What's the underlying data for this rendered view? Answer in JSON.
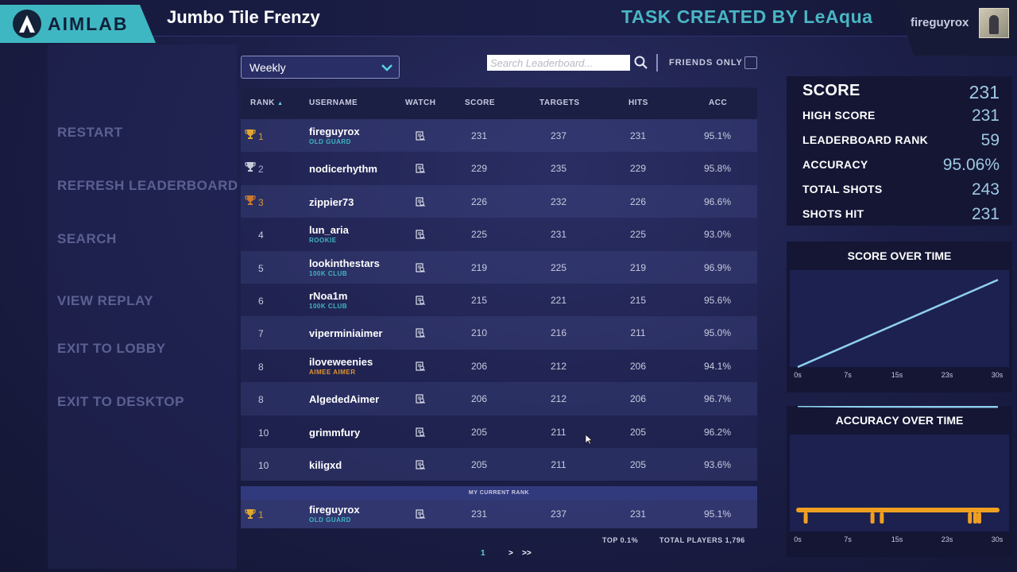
{
  "header": {
    "logo_text": "AIMLAB",
    "game_title": "Jumbo Tile Frenzy",
    "task_credit": "TASK CREATED BY LeAqua",
    "username": "fireguyrox"
  },
  "menu": {
    "items": [
      "RESTART",
      "REFRESH LEADERBOARD",
      "SEARCH",
      "VIEW REPLAY",
      "EXIT TO LOBBY",
      "EXIT TO DESKTOP"
    ]
  },
  "controls": {
    "period": "Weekly",
    "search_placeholder": "Search Leaderboard...",
    "friends_only_label": "FRIENDS ONLY"
  },
  "table": {
    "columns": [
      "RANK",
      "USERNAME",
      "WATCH",
      "SCORE",
      "TARGETS",
      "HITS",
      "ACC"
    ],
    "rows": [
      {
        "rank": "1",
        "trophy": "gold",
        "username": "fireguyrox",
        "badge": "OLD GUARD",
        "badge_color": "#3fb7c2",
        "score": "231",
        "targets": "237",
        "hits": "231",
        "acc": "95.1%"
      },
      {
        "rank": "2",
        "trophy": "silver",
        "username": "nodicerhythm",
        "badge": "",
        "badge_color": "",
        "score": "229",
        "targets": "235",
        "hits": "229",
        "acc": "95.8%"
      },
      {
        "rank": "3",
        "trophy": "bronze",
        "username": "zippier73",
        "badge": "",
        "badge_color": "",
        "score": "226",
        "targets": "232",
        "hits": "226",
        "acc": "96.6%"
      },
      {
        "rank": "4",
        "trophy": "",
        "username": "lun_aria",
        "badge": "ROOKIE",
        "badge_color": "#3fb7c2",
        "score": "225",
        "targets": "231",
        "hits": "225",
        "acc": "93.0%"
      },
      {
        "rank": "5",
        "trophy": "",
        "username": "lookinthestars",
        "badge": "100K CLUB",
        "badge_color": "#3fb7c2",
        "score": "219",
        "targets": "225",
        "hits": "219",
        "acc": "96.9%"
      },
      {
        "rank": "6",
        "trophy": "",
        "username": "rNoa1m",
        "badge": "100K CLUB",
        "badge_color": "#3fb7c2",
        "score": "215",
        "targets": "221",
        "hits": "215",
        "acc": "95.6%"
      },
      {
        "rank": "7",
        "trophy": "",
        "username": "viperminiaimer",
        "badge": "",
        "badge_color": "",
        "score": "210",
        "targets": "216",
        "hits": "211",
        "acc": "95.0%"
      },
      {
        "rank": "8",
        "trophy": "",
        "username": "iloveweenies",
        "badge": "AIMEE AIMER",
        "badge_color": "#e0962e",
        "score": "206",
        "targets": "212",
        "hits": "206",
        "acc": "94.1%"
      },
      {
        "rank": "8",
        "trophy": "",
        "username": "AlgededAimer",
        "badge": "",
        "badge_color": "",
        "score": "206",
        "targets": "212",
        "hits": "206",
        "acc": "96.7%"
      },
      {
        "rank": "10",
        "trophy": "",
        "username": "grimmfury",
        "badge": "",
        "badge_color": "",
        "score": "205",
        "targets": "211",
        "hits": "205",
        "acc": "96.2%"
      },
      {
        "rank": "10",
        "trophy": "",
        "username": "kiligxd",
        "badge": "",
        "badge_color": "",
        "score": "205",
        "targets": "211",
        "hits": "205",
        "acc": "93.6%"
      }
    ],
    "my_rank_label": "MY CURRENT RANK",
    "my_row": {
      "rank": "1",
      "trophy": "gold",
      "username": "fireguyrox",
      "badge": "OLD GUARD",
      "badge_color": "#3fb7c2",
      "score": "231",
      "targets": "237",
      "hits": "231",
      "acc": "95.1%"
    },
    "top_percent": "TOP 0.1%",
    "total_players": "TOTAL PLAYERS 1,796",
    "pagination": {
      "current": "1",
      "next": ">",
      "last": ">>"
    }
  },
  "stats": [
    {
      "label": "SCORE",
      "value": "231"
    },
    {
      "label": "HIGH SCORE",
      "value": "231"
    },
    {
      "label": "LEADERBOARD RANK",
      "value": "59"
    },
    {
      "label": "ACCURACY",
      "value": "95.06%"
    },
    {
      "label": "TOTAL SHOTS",
      "value": "243"
    },
    {
      "label": "SHOTS HIT",
      "value": "231"
    }
  ],
  "chart_data": [
    {
      "type": "line",
      "title": "SCORE OVER TIME",
      "x_ticks": [
        "0s",
        "7s",
        "15s",
        "23s",
        "30s"
      ],
      "x": [
        0,
        30
      ],
      "values": [
        0,
        231
      ],
      "xlim": [
        0,
        30
      ],
      "ylim": [
        0,
        240
      ],
      "color": "#8fd0f0"
    },
    {
      "type": "line",
      "title": "ACCURACY OVER TIME",
      "x_ticks": [
        "0s",
        "7s",
        "15s",
        "23s",
        "30s"
      ],
      "x": [
        0,
        5,
        10,
        15,
        20,
        25,
        30
      ],
      "values": [
        96,
        95.5,
        95.3,
        95.2,
        95.1,
        95.1,
        95.06
      ],
      "xlim": [
        0,
        30
      ],
      "ylim": [
        0,
        100
      ],
      "color": "#8fd0f0",
      "miss_times": [
        1.2,
        11.2,
        12.6,
        25.8,
        26.6,
        27.2
      ],
      "miss_color": "#f0a020"
    }
  ]
}
